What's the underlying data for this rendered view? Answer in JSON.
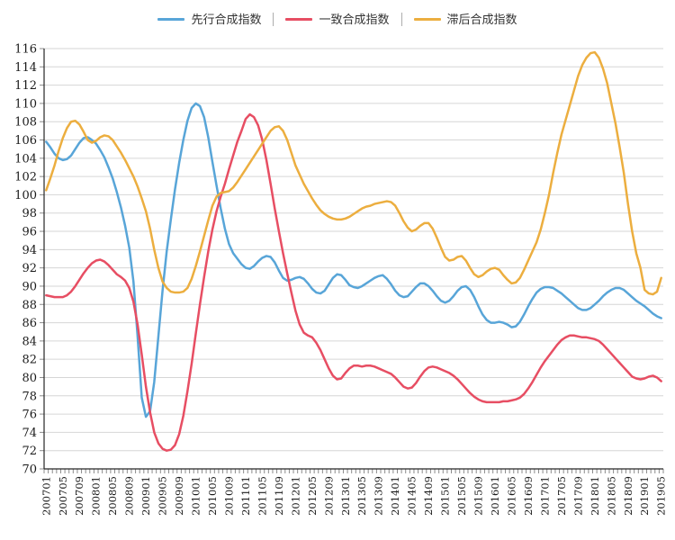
{
  "legend": {
    "items": [
      {
        "label": "先行合成指数"
      },
      {
        "label": "一致合成指数"
      },
      {
        "label": "滞后合成指数"
      }
    ]
  },
  "chart_data": {
    "type": "line",
    "title": "",
    "xlabel": "",
    "ylabel": "",
    "x_frequency": "monthly",
    "x_start": "200701",
    "x_end": "201905",
    "n_points": 149,
    "ylim": [
      70,
      116
    ],
    "y_tick_step": 2,
    "grid": "horizontal",
    "legend_position": "top-center",
    "axis_color": "#262626",
    "grid_color": "#d6d6d6",
    "tick_color": "#8c8c8c",
    "label_color": "#1a1a1a",
    "y_tick_labels": [
      "70",
      "72",
      "74",
      "76",
      "78",
      "80",
      "82",
      "84",
      "86",
      "88",
      "90",
      "92",
      "94",
      "96",
      "98",
      "100",
      "102",
      "104",
      "106",
      "108",
      "110",
      "112",
      "114",
      "116"
    ],
    "x_tick_labels": [
      "200701",
      "200705",
      "200709",
      "200801",
      "200805",
      "200809",
      "200901",
      "200905",
      "200909",
      "201001",
      "201005",
      "201009",
      "201101",
      "201105",
      "201109",
      "201201",
      "201205",
      "201209",
      "201301",
      "201305",
      "201309",
      "201401",
      "201405",
      "201409",
      "201501",
      "201505",
      "201509",
      "201601",
      "201605",
      "201609",
      "201701",
      "201705",
      "201709",
      "201801",
      "201805",
      "201809",
      "201901",
      "201905"
    ],
    "x_label_every_n_months": 4,
    "series": [
      {
        "name": "先行合成指数",
        "color": "#58a5d8",
        "values": [
          105.8,
          105.2,
          104.5,
          104.0,
          103.8,
          103.9,
          104.3,
          105.0,
          105.7,
          106.2,
          106.3,
          106.0,
          105.6,
          104.9,
          104.1,
          103.0,
          101.8,
          100.3,
          98.6,
          96.6,
          94.2,
          90.5,
          84.5,
          77.8,
          75.7,
          76.3,
          79.5,
          84.5,
          89.5,
          93.8,
          97.3,
          100.6,
          103.5,
          106.0,
          108.1,
          109.5,
          110.0,
          109.7,
          108.5,
          106.3,
          103.6,
          101.0,
          98.5,
          96.3,
          94.6,
          93.6,
          93.0,
          92.4,
          92.0,
          91.9,
          92.2,
          92.7,
          93.1,
          93.3,
          93.2,
          92.6,
          91.7,
          90.9,
          90.6,
          90.7,
          90.9,
          91.0,
          90.8,
          90.3,
          89.7,
          89.3,
          89.2,
          89.5,
          90.2,
          90.9,
          91.3,
          91.2,
          90.7,
          90.1,
          89.9,
          89.8,
          90.0,
          90.3,
          90.6,
          90.9,
          91.1,
          91.2,
          90.8,
          90.2,
          89.5,
          89.0,
          88.8,
          88.9,
          89.4,
          89.9,
          90.3,
          90.3,
          90.0,
          89.5,
          88.9,
          88.4,
          88.2,
          88.4,
          88.9,
          89.5,
          89.9,
          90.0,
          89.6,
          88.8,
          87.8,
          86.9,
          86.3,
          86.0,
          86.0,
          86.1,
          86.0,
          85.8,
          85.5,
          85.6,
          86.1,
          86.9,
          87.8,
          88.6,
          89.3,
          89.7,
          89.9,
          89.9,
          89.8,
          89.5,
          89.2,
          88.8,
          88.4,
          88.0,
          87.6,
          87.4,
          87.4,
          87.6,
          88.0,
          88.4,
          88.9,
          89.3,
          89.6,
          89.8,
          89.8,
          89.6,
          89.2,
          88.8,
          88.4,
          88.1,
          87.8,
          87.4,
          87.0,
          86.7,
          86.5
        ]
      },
      {
        "name": "一致合成指数",
        "color": "#e74e63",
        "values": [
          89.0,
          88.9,
          88.8,
          88.8,
          88.8,
          89.0,
          89.4,
          90.0,
          90.7,
          91.4,
          92.0,
          92.5,
          92.8,
          92.9,
          92.7,
          92.3,
          91.8,
          91.3,
          91.0,
          90.6,
          89.8,
          88.3,
          85.8,
          82.5,
          79.0,
          76.2,
          74.0,
          72.8,
          72.2,
          72.0,
          72.1,
          72.6,
          73.8,
          75.8,
          78.5,
          81.5,
          84.8,
          88.0,
          91.0,
          93.8,
          96.2,
          98.2,
          99.8,
          101.2,
          102.8,
          104.3,
          105.8,
          107.0,
          108.3,
          108.8,
          108.5,
          107.6,
          106.0,
          103.8,
          101.2,
          98.5,
          96.0,
          93.6,
          91.4,
          89.3,
          87.3,
          85.8,
          84.9,
          84.6,
          84.4,
          83.8,
          83.0,
          82.0,
          81.0,
          80.2,
          79.8,
          79.9,
          80.5,
          81.0,
          81.3,
          81.3,
          81.2,
          81.3,
          81.3,
          81.2,
          81.0,
          80.8,
          80.6,
          80.4,
          80.0,
          79.5,
          79.0,
          78.8,
          78.9,
          79.4,
          80.1,
          80.7,
          81.1,
          81.2,
          81.1,
          80.9,
          80.7,
          80.5,
          80.2,
          79.8,
          79.3,
          78.8,
          78.3,
          77.9,
          77.6,
          77.4,
          77.3,
          77.3,
          77.3,
          77.3,
          77.4,
          77.4,
          77.5,
          77.6,
          77.8,
          78.2,
          78.8,
          79.5,
          80.3,
          81.1,
          81.8,
          82.4,
          83.0,
          83.6,
          84.1,
          84.4,
          84.6,
          84.6,
          84.5,
          84.4,
          84.4,
          84.3,
          84.2,
          84.0,
          83.6,
          83.1,
          82.6,
          82.1,
          81.6,
          81.1,
          80.6,
          80.1,
          79.9,
          79.8,
          79.9,
          80.1,
          80.2,
          80.0,
          79.6
        ]
      },
      {
        "name": "滞后合成指数",
        "color": "#ecae3f",
        "values": [
          100.5,
          101.8,
          103.2,
          104.8,
          106.2,
          107.3,
          108.0,
          108.1,
          107.7,
          106.9,
          106.0,
          105.7,
          105.9,
          106.3,
          106.5,
          106.4,
          106.0,
          105.3,
          104.6,
          103.8,
          102.9,
          102.0,
          100.9,
          99.6,
          98.2,
          96.3,
          94.0,
          92.0,
          90.5,
          89.8,
          89.4,
          89.3,
          89.3,
          89.4,
          89.8,
          90.8,
          92.2,
          93.8,
          95.5,
          97.2,
          98.8,
          99.8,
          100.2,
          100.3,
          100.4,
          100.8,
          101.4,
          102.1,
          102.8,
          103.5,
          104.2,
          104.9,
          105.6,
          106.3,
          107.0,
          107.4,
          107.5,
          107.0,
          106.0,
          104.6,
          103.2,
          102.2,
          101.2,
          100.4,
          99.6,
          98.9,
          98.3,
          97.9,
          97.6,
          97.4,
          97.3,
          97.3,
          97.4,
          97.6,
          97.9,
          98.2,
          98.5,
          98.7,
          98.8,
          99.0,
          99.1,
          99.2,
          99.3,
          99.2,
          98.8,
          98.0,
          97.1,
          96.4,
          96.0,
          96.2,
          96.6,
          96.9,
          96.9,
          96.3,
          95.3,
          94.2,
          93.2,
          92.8,
          92.9,
          93.2,
          93.3,
          92.8,
          92.0,
          91.3,
          91.0,
          91.2,
          91.6,
          91.9,
          92.0,
          91.8,
          91.2,
          90.7,
          90.3,
          90.4,
          90.9,
          91.8,
          92.8,
          93.8,
          94.8,
          96.2,
          98.0,
          100.0,
          102.4,
          104.6,
          106.6,
          108.2,
          109.8,
          111.4,
          113.0,
          114.2,
          115.0,
          115.5,
          115.6,
          115.0,
          113.8,
          112.2,
          110.0,
          107.8,
          105.2,
          102.4,
          99.0,
          96.0,
          93.6,
          92.0,
          89.6,
          89.2,
          89.1,
          89.4,
          90.9
        ]
      }
    ]
  }
}
